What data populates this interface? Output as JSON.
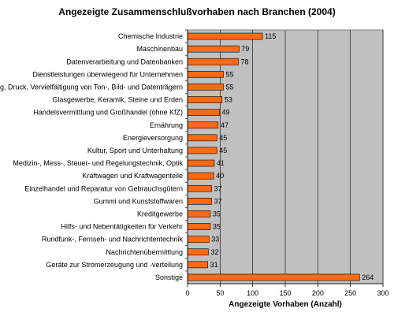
{
  "chart_data": {
    "type": "bar",
    "orientation": "horizontal",
    "title": "Angezeigte Zusammenschlußvorhaben nach Branchen (2004)",
    "xlabel": "Angezeigte Vorhaben (Anzahl)",
    "ylabel": "",
    "xlim": [
      0,
      300
    ],
    "xticks": [
      "0",
      "50",
      "100",
      "150",
      "200",
      "250",
      "300"
    ],
    "grid": true,
    "colors": {
      "bar": "#FF6A13",
      "bar_border": "#000000",
      "plot_bg": "#C0C0C0",
      "grid": "#000000"
    },
    "categories": [
      "Chemische Industrie",
      "Maschinenbau",
      "Datenverarbeitung und Datenbanken",
      "Dienstleistungen überwiegend für Unternehmen",
      "Verlag, Druck, Vervielfältigung von Ton-, Bild- und Datenträgern",
      "Glasgewerbe, Keramik, Steine und Erden",
      "Handelsvermittlung und Großhandel (ohne KfZ)",
      "Ernährung",
      "Energieversorgung",
      "Kultur, Sport und Unterhaltung",
      "Medizin-, Mess-, Steuer- und Regelungstechnik, Optik",
      "Kraftwagen und Kraftwagenteile",
      "Einzelhandel und Reparatur von Gebrauchsgütern",
      "Gummi und Kunststoffwaren",
      "Kreditgewerbe",
      "Hilfs- und Nebentätigkeiten für Verkehr",
      "Rundfunk-, Fernseh- und Nachrichtentechnik",
      "Nachrichtenübermittlung",
      "Geräte zur Stromerzeugung und -verteilung",
      "Sonstige"
    ],
    "values": [
      115,
      79,
      78,
      55,
      55,
      53,
      49,
      47,
      45,
      45,
      41,
      40,
      37,
      37,
      35,
      35,
      33,
      32,
      31,
      264
    ]
  }
}
